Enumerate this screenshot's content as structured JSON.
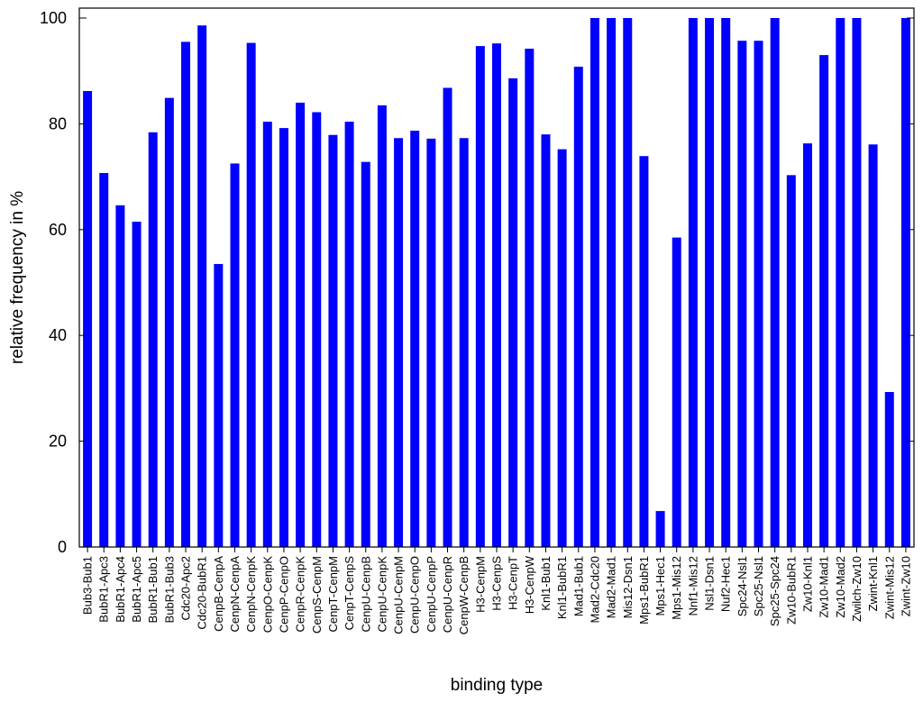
{
  "chart_data": {
    "type": "bar",
    "title": "",
    "xlabel": "binding type",
    "ylabel": "relative frequency in %",
    "ylim": [
      0,
      100
    ],
    "yticks": [
      0,
      20,
      40,
      60,
      80,
      100
    ],
    "grid": false,
    "bar_color": "#0000ff",
    "categories": [
      "Bub3-Bub1",
      "BubR1-Apc3",
      "BubR1-Apc4",
      "BubR1-Apc5",
      "BubR1-Bub1",
      "BubR1-Bub3",
      "Cdc20-Apc2",
      "Cdc20-BubR1",
      "CenpB-CenpA",
      "CenpN-CenpA",
      "CenpN-CenpK",
      "CenpO-CenpK",
      "CenpP-CenpO",
      "CenpR-CenpK",
      "CenpS-CenpM",
      "CenpT-CenpM",
      "CenpT-CenpS",
      "CenpU-CenpB",
      "CenpU-CenpK",
      "CenpU-CenpM",
      "CenpU-CenpO",
      "CenpU-CenpP",
      "CenpU-CenpR",
      "CenpW-CenpB",
      "H3-CenpM",
      "H3-CenpS",
      "H3-CenpT",
      "H3-CenpW",
      "Knl1-Bub1",
      "Knl1-BubR1",
      "Mad1-Bub1",
      "Mad2-Cdc20",
      "Mad2-Mad1",
      "Mis12-Dsn1",
      "Mps1-BubR1",
      "Mps1-Hec1",
      "Mps1-Mis12",
      "Nnf1-Mis12",
      "Nsl1-Dsn1",
      "Nuf2-Hec1",
      "Spc24-Nsl1",
      "Spc25-Nsl1",
      "Spc25-Spc24",
      "Zw10-BubR1",
      "Zw10-Knl1",
      "Zw10-Mad1",
      "Zw10-Mad2",
      "Zwilch-Zw10",
      "Zwint-Knl1",
      "Zwint-Mis12",
      "Zwint-Zw10"
    ],
    "values": [
      86.2,
      70.7,
      64.6,
      61.5,
      78.4,
      84.9,
      95.5,
      98.6,
      53.5,
      72.5,
      95.3,
      80.4,
      79.2,
      84.0,
      82.2,
      77.9,
      80.4,
      72.8,
      83.5,
      77.3,
      78.7,
      77.2,
      86.8,
      77.3,
      94.7,
      95.2,
      88.6,
      94.2,
      78.0,
      75.2,
      90.8,
      100,
      100,
      100,
      73.9,
      6.8,
      58.5,
      100,
      100,
      100,
      95.7,
      95.7,
      100,
      70.3,
      76.3,
      93.0,
      100,
      100,
      76.1,
      29.3,
      100
    ]
  }
}
